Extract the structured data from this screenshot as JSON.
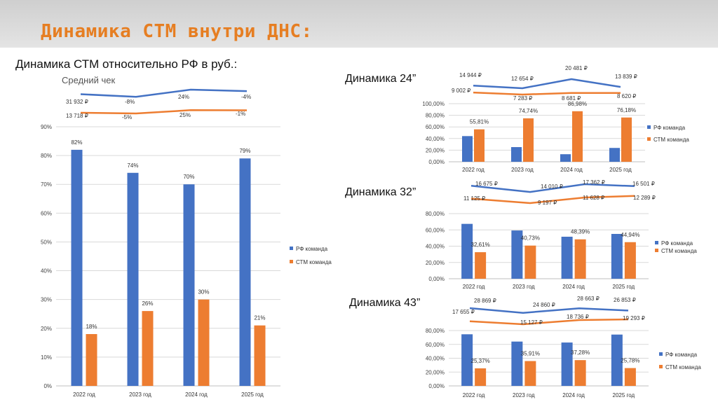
{
  "header": {
    "title": "Динамика СТМ внутри ДНС:"
  },
  "subtitle": "Динамика СТМ относительно РФ в руб.:",
  "colors": {
    "rf": "#4472c4",
    "stm": "#ed7d31",
    "accent": "#e67e22"
  },
  "chart_data": [
    {
      "type": "bar",
      "title": "",
      "categories": [
        "2022 год",
        "2023 год",
        "2024 год",
        "2025 год"
      ],
      "series": [
        {
          "name": "РФ команда",
          "values": [
            82,
            74,
            70,
            79
          ]
        },
        {
          "name": "СТМ команда",
          "values": [
            18,
            26,
            30,
            21
          ]
        }
      ],
      "value_labels": [
        [
          "82%",
          "74%",
          "70%",
          "79%"
        ],
        [
          "18%",
          "26%",
          "30%",
          "21%"
        ]
      ],
      "ylim": [
        0,
        90
      ],
      "yticks": [
        "0%",
        "10%",
        "20%",
        "30%",
        "40%",
        "50%",
        "60%",
        "70%",
        "80%",
        "90%"
      ],
      "legend": "right",
      "line_chart": {
        "title": "Средний чек",
        "series": [
          {
            "name": "РФ команда",
            "values": [
              31932,
              29377,
              36428,
              34971
            ],
            "labels": [
              "31 932 ₽",
              "-8%",
              "24%",
              "-4%"
            ]
          },
          {
            "name": "СТМ команда",
            "values": [
              13718,
              13032,
              16290,
              16127
            ],
            "labels": [
              "13 718 ₽",
              "-5%",
              "25%",
              "-1%"
            ]
          }
        ]
      }
    },
    {
      "type": "bar",
      "title": "Динамика 24”",
      "categories": [
        "2022 год",
        "2023 год",
        "2024 год",
        "2025 год"
      ],
      "series": [
        {
          "name": "РФ команда",
          "values": [
            44.19,
            25.26,
            13.02,
            23.82
          ]
        },
        {
          "name": "СТМ команда",
          "values": [
            55.81,
            74.74,
            86.98,
            76.18
          ]
        }
      ],
      "value_labels": [
        [
          "",
          "",
          "",
          ""
        ],
        [
          "55,81%",
          "74,74%",
          "86,98%",
          "76,18%"
        ]
      ],
      "ylim": [
        0,
        100
      ],
      "yticks": [
        "0,00%",
        "20,00%",
        "40,00%",
        "60,00%",
        "80,00%",
        "100,00%"
      ],
      "legend": "right",
      "line_chart": {
        "title": "",
        "series": [
          {
            "name": "РФ команда",
            "values": [
              14944,
              12654,
              20481,
              13839
            ],
            "labels": [
              "14 944 ₽",
              "12 654 ₽",
              "20 481 ₽",
              "13 839 ₽"
            ]
          },
          {
            "name": "СТМ команда",
            "values": [
              9002,
              7283,
              8681,
              8620
            ],
            "labels": [
              "9 002 ₽",
              "7 283 ₽",
              "8 681 ₽",
              "8 620 ₽"
            ]
          }
        ]
      }
    },
    {
      "type": "bar",
      "title": "Динамика 32”",
      "categories": [
        "2022 год",
        "2023 год",
        "2024 год",
        "2025 год"
      ],
      "series": [
        {
          "name": "РФ команда",
          "values": [
            67.39,
            59.27,
            51.61,
            55.06
          ]
        },
        {
          "name": "СТМ команда",
          "values": [
            32.61,
            40.73,
            48.39,
            44.94
          ]
        }
      ],
      "value_labels": [
        [
          "",
          "",
          "",
          ""
        ],
        [
          "32,61%",
          "40,73%",
          "48,39%",
          "44,94%"
        ]
      ],
      "ylim": [
        0,
        80
      ],
      "yticks": [
        "0,00%",
        "20,00%",
        "40,00%",
        "60,00%",
        "80,00%"
      ],
      "legend": "right",
      "line_chart": {
        "title": "",
        "series": [
          {
            "name": "РФ команда",
            "values": [
              16675,
              14010,
              17362,
              16501
            ],
            "labels": [
              "16 675 ₽",
              "14 010 ₽",
              "17 362 ₽",
              "16 501 ₽"
            ]
          },
          {
            "name": "СТМ команда",
            "values": [
              11125,
              9197,
              11628,
              12289
            ],
            "labels": [
              "11 125 ₽",
              "9 197 ₽",
              "11 628 ₽",
              "12 289 ₽"
            ]
          }
        ]
      }
    },
    {
      "type": "bar",
      "title": "Динамика 43”",
      "categories": [
        "2022 год",
        "2023 год",
        "2024 год",
        "2025 год"
      ],
      "series": [
        {
          "name": "РФ команда",
          "values": [
            74.63,
            64.09,
            62.72,
            74.22
          ]
        },
        {
          "name": "СТМ команда",
          "values": [
            25.37,
            35.91,
            37.28,
            25.78
          ]
        }
      ],
      "value_labels": [
        [
          "",
          "",
          "",
          ""
        ],
        [
          "25,37%",
          "35,91%",
          "37,28%",
          "25,78%"
        ]
      ],
      "ylim": [
        0,
        80
      ],
      "yticks": [
        "0,00%",
        "20,00%",
        "40,00%",
        "60,00%",
        "80,00%"
      ],
      "legend": "right",
      "line_chart": {
        "title": "",
        "series": [
          {
            "name": "РФ команда",
            "values": [
              28869,
              24860,
              28663,
              26853
            ],
            "labels": [
              "28 869 ₽",
              "24 860 ₽",
              "28 663 ₽",
              "26 853 ₽"
            ]
          },
          {
            "name": "СТМ команда",
            "values": [
              17655,
              15127,
              18736,
              19293
            ],
            "labels": [
              "17 655 ₽",
              "15 127 ₽",
              "18 736 ₽",
              "19 293 ₽"
            ]
          }
        ]
      }
    }
  ]
}
